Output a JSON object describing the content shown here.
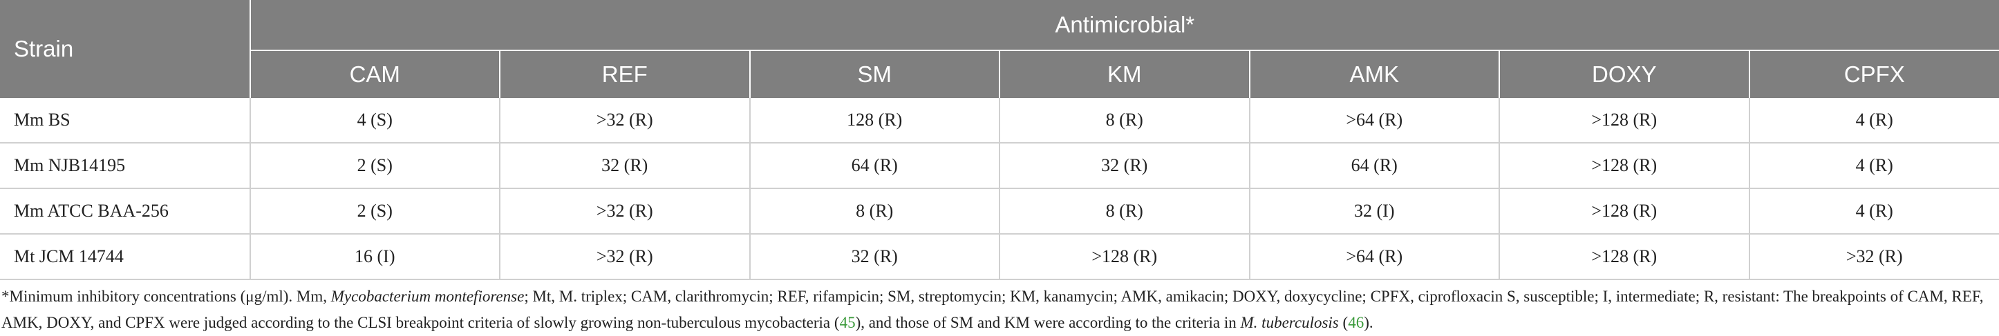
{
  "table": {
    "strain_header": "Strain",
    "group_header": "Antimicrobial*",
    "columns": [
      "CAM",
      "REF",
      "SM",
      "KM",
      "AMK",
      "DOXY",
      "CPFX"
    ],
    "rows": [
      [
        "Mm BS",
        "4 (S)",
        ">32 (R)",
        "128 (R)",
        "8 (R)",
        ">64 (R)",
        ">128 (R)",
        "4 (R)"
      ],
      [
        "Mm NJB14195",
        "2 (S)",
        "32 (R)",
        "64 (R)",
        "32 (R)",
        "64 (R)",
        ">128 (R)",
        "4 (R)"
      ],
      [
        "Mm ATCC BAA-256",
        "2 (S)",
        ">32 (R)",
        "8 (R)",
        "8 (R)",
        "32 (I)",
        ">128 (R)",
        "4 (R)"
      ],
      [
        "Mt JCM 14744",
        "16 (I)",
        ">32 (R)",
        "32 (R)",
        ">128 (R)",
        ">64 (R)",
        ">128 (R)",
        ">32 (R)"
      ]
    ]
  },
  "footnote": [
    "*Minimum inhibitory concentrations (μg/ml). Mm, ",
    "Mycobacterium montefiorense",
    "; Mt, M. triplex; CAM, clarithromycin; REF, rifampicin; SM, streptomycin; KM, kanamycin; AMK, amikacin; DOXY, doxycycline; CPFX, ciprofloxacin S, susceptible; I, intermediate; R, resistant: The breakpoints of CAM, REF, AMK, DOXY, and CPFX were judged according to the CLSI breakpoint criteria of slowly growing non-tuberculous mycobacteria (",
    "45",
    "), and those of SM and KM were according to the criteria in ",
    "M. tuberculosis",
    " (",
    "46",
    ")."
  ]
}
